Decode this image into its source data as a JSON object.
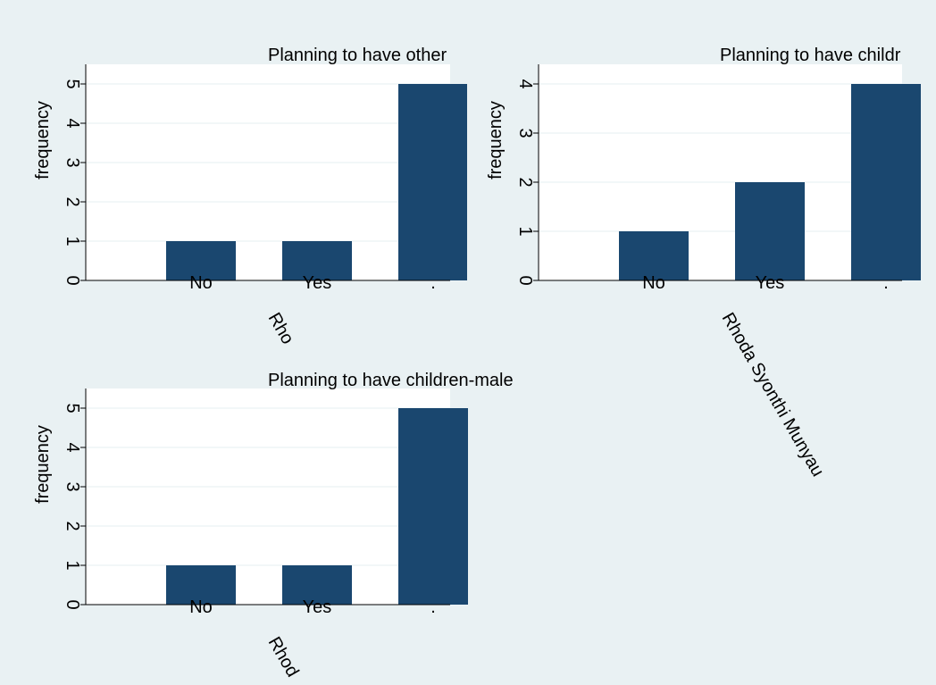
{
  "colors": {
    "background": "#e9f1f3",
    "plot_area": "#ffffff",
    "bar": "#1a476f",
    "grid": "#eaf2f3",
    "axis": "#000000"
  },
  "chart_data": [
    {
      "type": "bar",
      "title": "Planning to have other",
      "ylabel": "frequency",
      "categories": [
        "No",
        "Yes",
        "."
      ],
      "values": [
        1,
        1,
        5
      ],
      "ylim": [
        0,
        5.5
      ],
      "yticks": [
        "0",
        "1",
        "2",
        "3",
        "4",
        "5"
      ],
      "xlabel": "Rho",
      "grid": true
    },
    {
      "type": "bar",
      "title": "Planning to have childr",
      "ylabel": "frequency",
      "categories": [
        "No",
        "Yes",
        "."
      ],
      "values": [
        1,
        2,
        4
      ],
      "ylim": [
        0,
        4.4
      ],
      "yticks": [
        "0",
        "1",
        "2",
        "3",
        "4"
      ],
      "xlabel": "Rhoda Syonthi Munyau",
      "grid": true
    },
    {
      "type": "bar",
      "title": "Planning to have children-male",
      "ylabel": "frequency",
      "categories": [
        "No",
        "Yes",
        "."
      ],
      "values": [
        1,
        1,
        5
      ],
      "ylim": [
        0,
        5.5
      ],
      "yticks": [
        "0",
        "1",
        "2",
        "3",
        "4",
        "5"
      ],
      "xlabel": "Rhod",
      "grid": true
    }
  ]
}
